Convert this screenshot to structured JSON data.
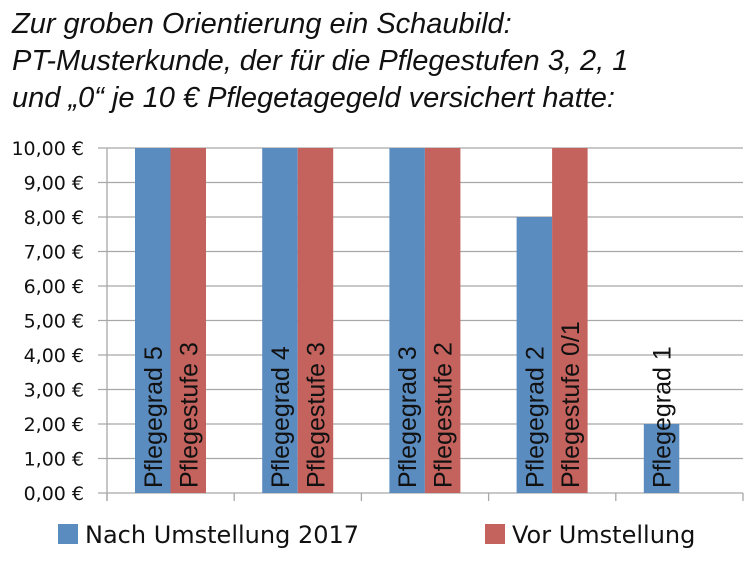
{
  "chart_data": {
    "type": "bar",
    "title_lines": [
      "Zur groben Orientierung ein Schaubild:",
      "PT-Musterkunde, der für die Pflegestufen 3, 2, 1",
      "und „0“ je 10 € Pflegetagegeld versichert hatte:"
    ],
    "ylim": [
      0,
      10
    ],
    "yticks": [
      "0,00 €",
      "1,00 €",
      "2,00 €",
      "3,00 €",
      "4,00 €",
      "5,00 €",
      "6,00 €",
      "7,00 €",
      "8,00 €",
      "9,00 €",
      "10,00 €"
    ],
    "grid": true,
    "legend_position": "bottom",
    "series": [
      {
        "name": "Nach Umstellung 2017",
        "color": "#5b8cc0",
        "values": [
          10,
          10,
          10,
          8,
          2
        ],
        "labels": [
          "Pflegegrad 5",
          "Pflegegrad 4",
          "Pflegegrad 3",
          "Pflegegrad 2",
          "Pflegegrad 1"
        ]
      },
      {
        "name": "Vor Umstellung",
        "color": "#c4625d",
        "values": [
          10,
          10,
          10,
          10,
          0
        ],
        "labels": [
          "Pflegestufe 3",
          "Pflegestufe 3",
          "Pflegestufe 2",
          "Pflegestufe 0/1",
          ""
        ]
      }
    ]
  }
}
